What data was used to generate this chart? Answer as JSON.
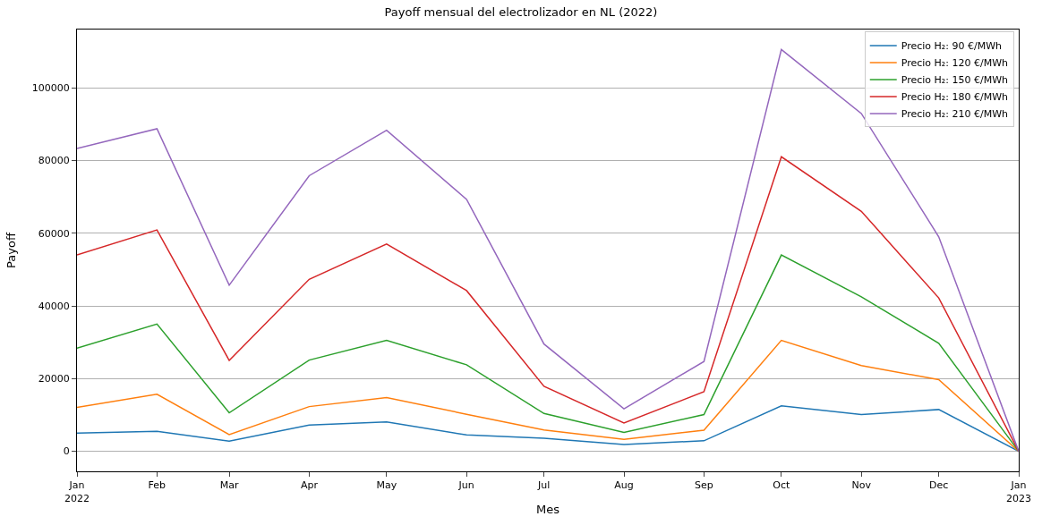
{
  "chart_data": {
    "type": "line",
    "title": "Payoff mensual del electrolizador en NL (2022)",
    "xlabel": "Mes",
    "ylabel": "Payoff",
    "x": [
      "2022-01",
      "2022-02",
      "2022-03",
      "2022-04",
      "2022-05",
      "2022-06",
      "2022-07",
      "2022-08",
      "2022-09",
      "2022-10",
      "2022-11",
      "2022-12",
      "2023-01"
    ],
    "series": [
      {
        "name": "Precio H₂: 90 €/MWh",
        "color": "#1f77b4",
        "values": [
          5000,
          5500,
          2800,
          7200,
          8100,
          4500,
          3600,
          1900,
          2900,
          12500,
          10100,
          11500,
          0
        ]
      },
      {
        "name": "Precio H₂: 120 €/MWh",
        "color": "#ff7f0e",
        "values": [
          12100,
          15700,
          4600,
          12300,
          14800,
          10200,
          5900,
          3300,
          5800,
          30500,
          23600,
          19700,
          0
        ]
      },
      {
        "name": "Precio H₂: 150 €/MWh",
        "color": "#2ca02c",
        "values": [
          28400,
          35000,
          10600,
          25100,
          30500,
          23800,
          10400,
          5200,
          10100,
          54000,
          42500,
          29700,
          0
        ]
      },
      {
        "name": "Precio H₂: 180 €/MWh",
        "color": "#d62728",
        "values": [
          54000,
          60900,
          25000,
          47300,
          57000,
          44200,
          17900,
          7800,
          16400,
          81000,
          66000,
          42200,
          0
        ]
      },
      {
        "name": "Precio H₂: 210 €/MWh",
        "color": "#9467bd",
        "values": [
          83300,
          88700,
          45700,
          75800,
          88300,
          69300,
          29500,
          11700,
          24700,
          110500,
          92900,
          59000,
          0
        ]
      }
    ],
    "xlim": [
      "2022-01",
      "2023-01"
    ],
    "xticks": [
      {
        "value": "2022-01",
        "label": "Jan\n2022"
      },
      {
        "value": "2022-02",
        "label": "Feb"
      },
      {
        "value": "2022-03",
        "label": "Mar"
      },
      {
        "value": "2022-04",
        "label": "Apr"
      },
      {
        "value": "2022-05",
        "label": "May"
      },
      {
        "value": "2022-06",
        "label": "Jun"
      },
      {
        "value": "2022-07",
        "label": "Jul"
      },
      {
        "value": "2022-08",
        "label": "Aug"
      },
      {
        "value": "2022-09",
        "label": "Sep"
      },
      {
        "value": "2022-10",
        "label": "Oct"
      },
      {
        "value": "2022-11",
        "label": "Nov"
      },
      {
        "value": "2022-12",
        "label": "Dec"
      },
      {
        "value": "2023-01",
        "label": "Jan\n2023"
      }
    ],
    "ylim": [
      -5500,
      116000
    ],
    "yticks": [
      0,
      20000,
      40000,
      60000,
      80000,
      100000
    ],
    "grid": "y",
    "legend": "top right",
    "marker": "none",
    "line_style": "solid"
  }
}
